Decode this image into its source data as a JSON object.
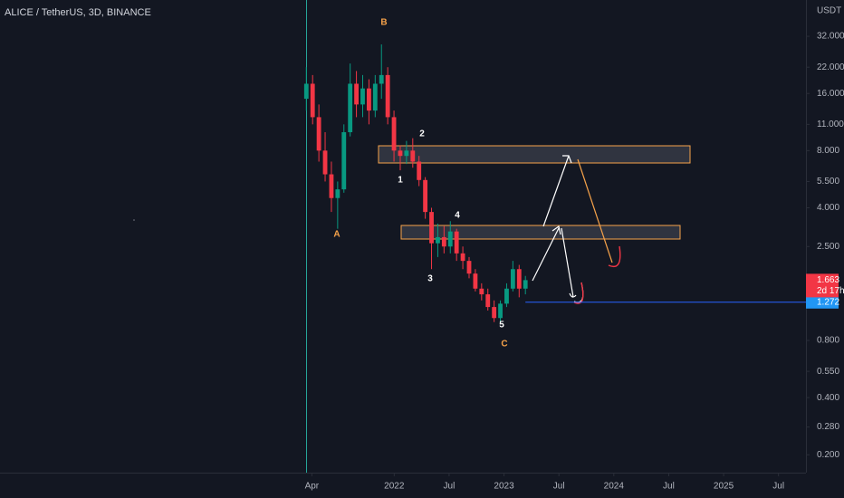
{
  "chart_data": {
    "type": "candlestick",
    "title": "ALICE / TetherUS, 3D, BINANCE",
    "y_axis_label": "USDT",
    "log_scale": true,
    "grid": false,
    "up_color": "#089981",
    "down_color": "#f23645",
    "xlim": [
      2018.41,
      2025.75
    ],
    "ylim": [
      0.161,
      49.7
    ],
    "xticks": [
      {
        "value": 2021.25,
        "label": "Apr"
      },
      2022,
      {
        "value": 2022.5,
        "label": "Jul"
      },
      2023,
      {
        "value": 2023.5,
        "label": "Jul"
      },
      2024,
      {
        "value": 2024.5,
        "label": "Jul"
      },
      2025,
      {
        "value": 2025.5,
        "label": "Jul"
      }
    ],
    "yticks": [
      {
        "value": 32,
        "label": "32.000"
      },
      {
        "value": 22,
        "label": "22.000"
      },
      {
        "value": 16,
        "label": "16.000"
      },
      {
        "value": 11,
        "label": "11.000"
      },
      {
        "value": 8,
        "label": "8.000"
      },
      {
        "value": 5.5,
        "label": "5.500"
      },
      {
        "value": 4,
        "label": "4.000"
      },
      {
        "value": 2.5,
        "label": "2.500"
      },
      {
        "value": 0.8,
        "label": "0.800"
      },
      {
        "value": 0.55,
        "label": "0.550"
      },
      {
        "value": 0.4,
        "label": "0.400"
      },
      {
        "value": 0.28,
        "label": "0.280"
      },
      {
        "value": 0.2,
        "label": "0.200"
      }
    ],
    "x": [
      2021.2,
      2021.257,
      2021.314,
      2021.371,
      2021.428,
      2021.485,
      2021.542,
      2021.599,
      2021.656,
      2021.713,
      2021.77,
      2021.827,
      2021.884,
      2021.941,
      2021.998,
      2022.055,
      2022.112,
      2022.169,
      2022.226,
      2022.283,
      2022.34,
      2022.397,
      2022.454,
      2022.511,
      2022.568,
      2022.625,
      2022.682,
      2022.739,
      2022.796,
      2022.853,
      2022.91,
      2022.967,
      2023.024,
      2023.081,
      2023.138,
      2023.195
    ],
    "open": [
      15,
      18,
      12,
      8,
      6,
      4.5,
      5,
      10,
      18,
      14,
      17,
      13,
      18,
      20,
      12,
      8,
      7.5,
      8,
      7,
      5.6,
      3.8,
      2.6,
      2.8,
      2.5,
      3,
      2.3,
      2.1,
      1.8,
      1.5,
      1.4,
      1.2,
      1.05,
      1.25,
      1.5,
      1.9,
      1.5
    ],
    "high": [
      22,
      20,
      14,
      10,
      7,
      5.5,
      11,
      23,
      21,
      20,
      19,
      20,
      29,
      22,
      13,
      8.5,
      9,
      9.3,
      7.5,
      5.8,
      4,
      3.3,
      3.2,
      3.4,
      3.1,
      2.5,
      2.2,
      1.9,
      1.6,
      1.5,
      1.3,
      1.3,
      1.6,
      2.1,
      2.0,
      1.75
    ],
    "low": [
      13,
      11,
      7,
      5.5,
      3.8,
      3.1,
      4.8,
      9.5,
      12,
      12,
      11,
      12,
      15,
      11,
      7,
      6.3,
      6.8,
      6.5,
      5.2,
      3.5,
      1.9,
      2.2,
      2.3,
      2.3,
      2.1,
      1.9,
      1.7,
      1.45,
      1.3,
      1.15,
      1.0,
      0.98,
      1.2,
      1.45,
      1.35,
      1.4
    ],
    "close": [
      18,
      12,
      8,
      6,
      4.5,
      5,
      10,
      18,
      14,
      17,
      13,
      18,
      20,
      12,
      8,
      7.5,
      8,
      7,
      5.6,
      3.8,
      2.6,
      2.8,
      2.5,
      3,
      2.3,
      2.1,
      1.8,
      1.5,
      1.4,
      1.2,
      1.05,
      1.25,
      1.5,
      1.9,
      1.5,
      1.663
    ],
    "last_price": {
      "value": 1.663,
      "label": "1.663"
    },
    "countdown": "2d 17h",
    "price_level": {
      "value": 1.272,
      "label": "1.272"
    },
    "wave_labels": [
      "A",
      "B",
      "1",
      "2",
      "3",
      "4",
      "5",
      "C"
    ]
  }
}
